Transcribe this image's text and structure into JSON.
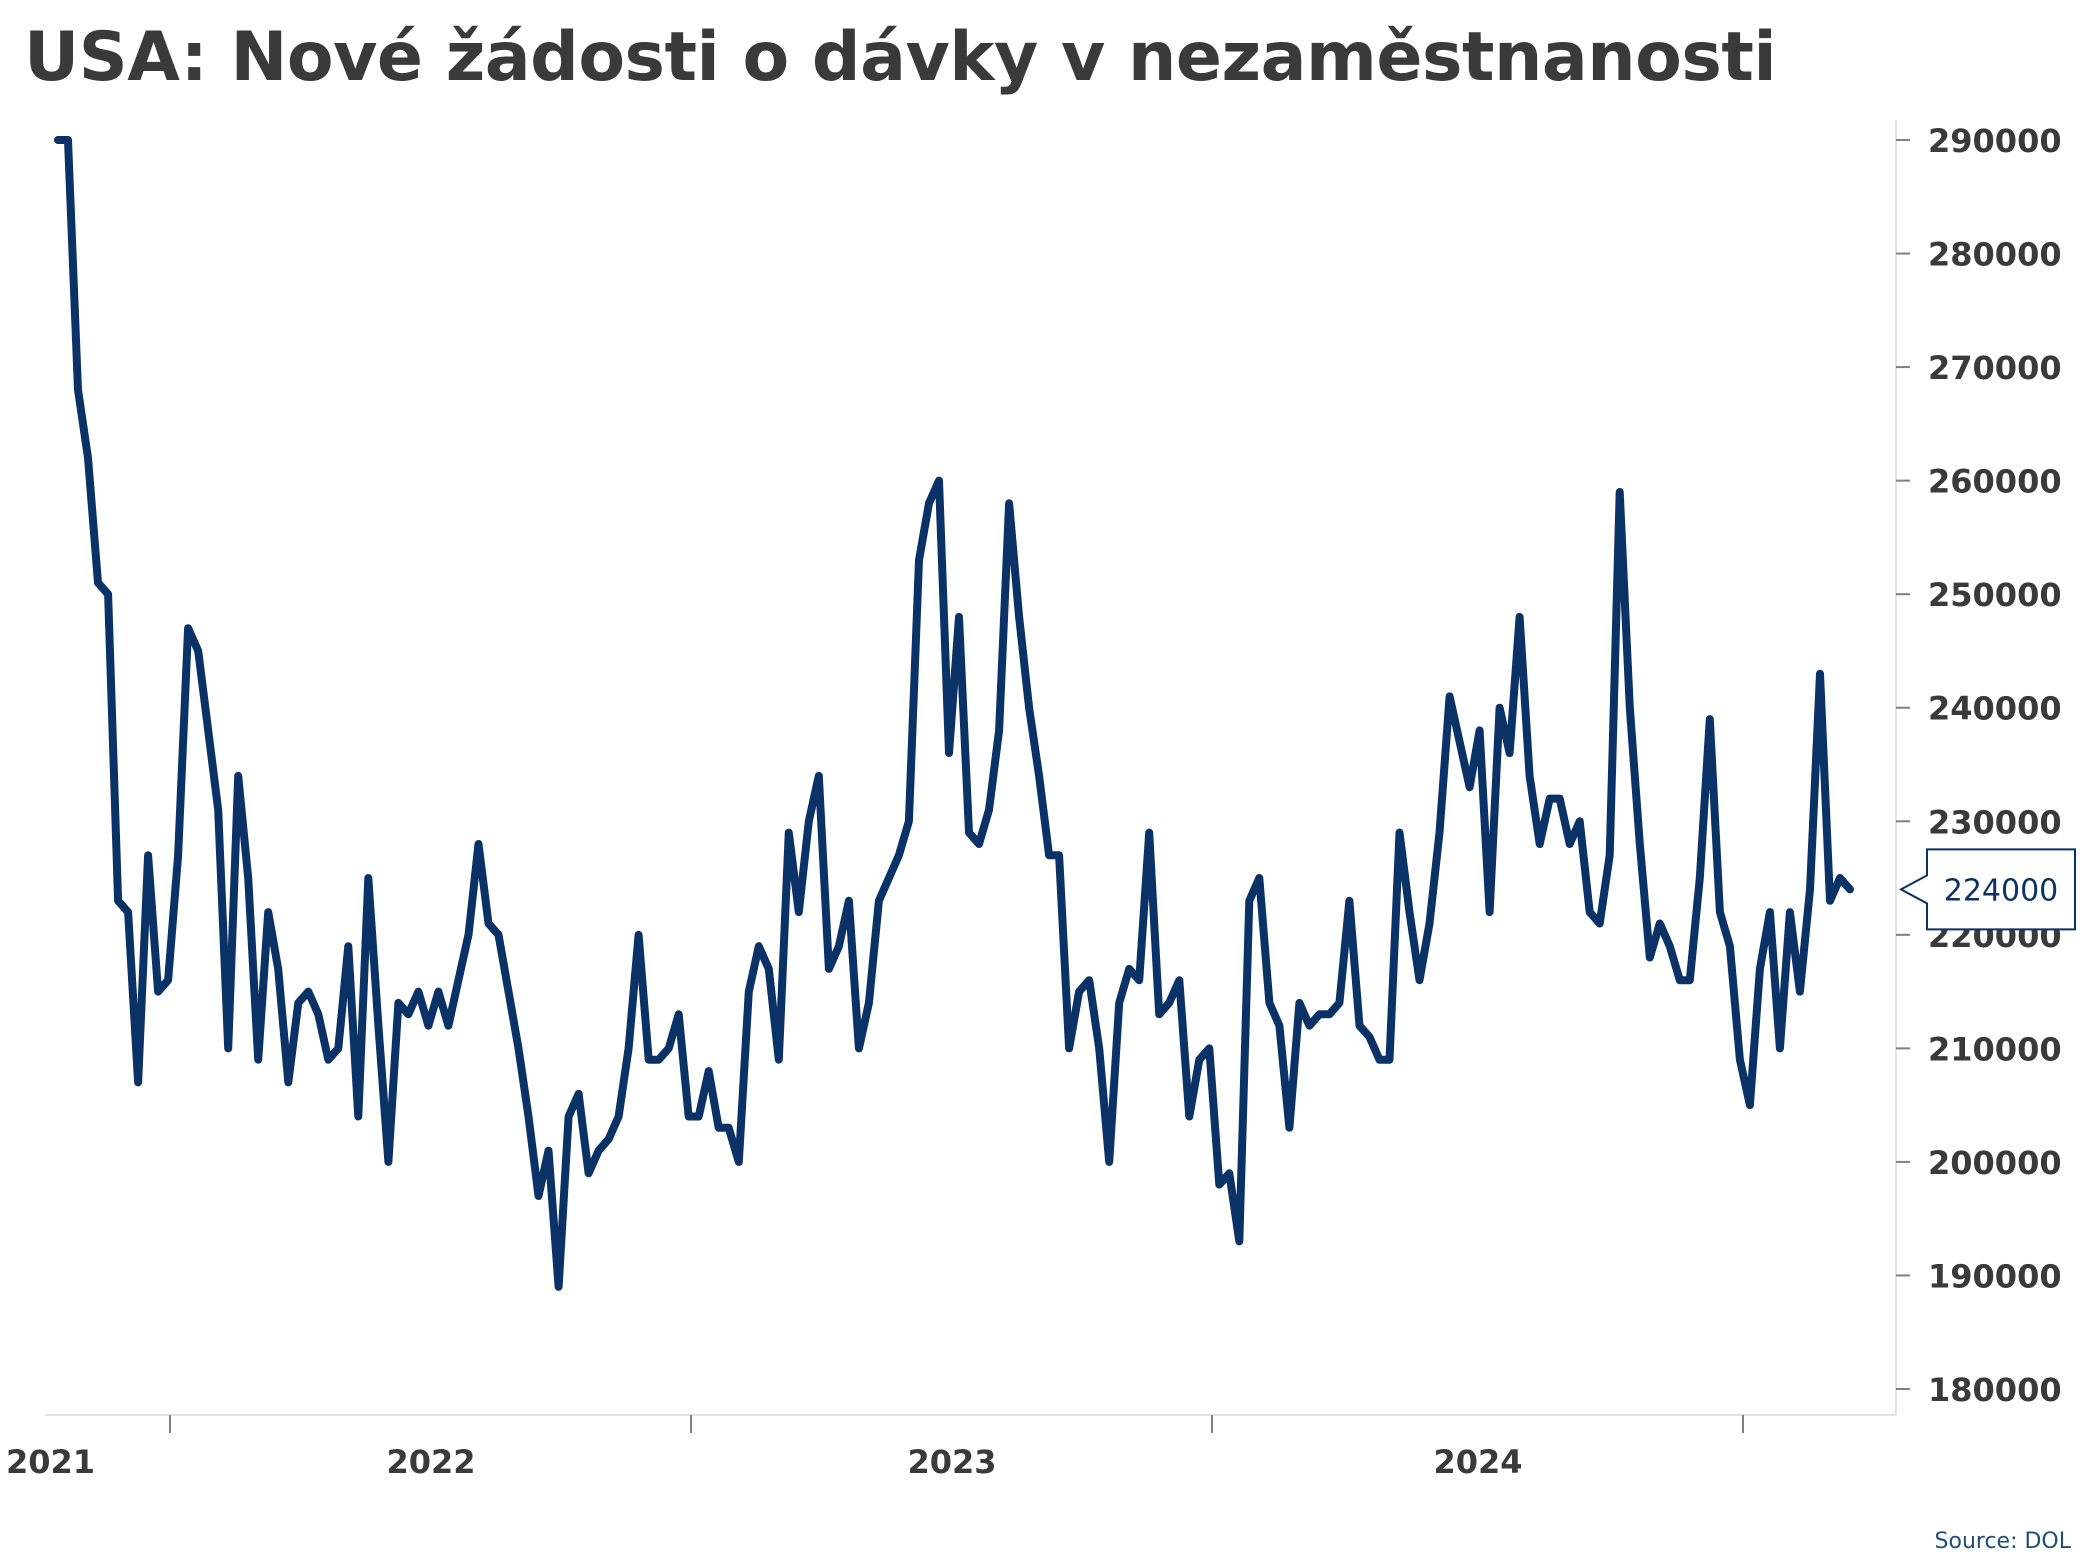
{
  "chart_data": {
    "type": "line",
    "title": "USA: Nové žádosti o dávky v nezaměstnanosti",
    "xlabel": "",
    "ylabel": "",
    "x_ticks": [
      "2021",
      "2022",
      "2023",
      "2024"
    ],
    "y_ticks": [
      180000,
      190000,
      200000,
      210000,
      220000,
      230000,
      240000,
      250000,
      260000,
      270000,
      280000,
      290000
    ],
    "ylim": [
      177000,
      292000
    ],
    "y_axis_position": "right",
    "grid": false,
    "line_color": "#0b3266",
    "last_value_label": "224000",
    "series": [
      {
        "values": [
          290000,
          290000,
          268000,
          262000,
          251000,
          250000,
          223000,
          222000,
          207000,
          227000,
          215000,
          216000,
          227000,
          247000,
          245000,
          238000,
          231000,
          210000,
          234000,
          225000,
          209000,
          222000,
          217000,
          207000,
          214000,
          215000,
          213000,
          209000,
          210000,
          219000,
          204000,
          225000,
          212000,
          200000,
          214000,
          213000,
          215000,
          212000,
          215000,
          212000,
          216000,
          220000,
          228000,
          221000,
          220000,
          215000,
          210000,
          204000,
          197000,
          201000,
          189000,
          204000,
          206000,
          199000,
          201000,
          202000,
          204000,
          210000,
          220000,
          209000,
          209000,
          210000,
          213000,
          204000,
          204000,
          208000,
          203000,
          203000,
          200000,
          215000,
          219000,
          217000,
          209000,
          229000,
          222000,
          230000,
          234000,
          217000,
          219000,
          223000,
          210000,
          214000,
          223000,
          225000,
          227000,
          230000,
          253000,
          258000,
          260000,
          236000,
          248000,
          229000,
          228000,
          231000,
          238000,
          258000,
          248000,
          240000,
          234000,
          227000,
          227000,
          210000,
          215000,
          216000,
          210000,
          200000,
          214000,
          217000,
          216000,
          229000,
          213000,
          214000,
          216000,
          204000,
          209000,
          210000,
          198000,
          199000,
          193000,
          223000,
          225000,
          214000,
          212000,
          203000,
          214000,
          212000,
          213000,
          213000,
          214000,
          223000,
          212000,
          211000,
          209000,
          209000,
          229000,
          222000,
          216000,
          221000,
          229000,
          241000,
          237000,
          233000,
          238000,
          222000,
          240000,
          236000,
          248000,
          234000,
          228000,
          232000,
          232000,
          228000,
          230000,
          222000,
          221000,
          227000,
          259000,
          240000,
          228000,
          218000,
          221000,
          219000,
          216000,
          216000,
          225000,
          239000,
          222000,
          219000,
          209000,
          205000,
          217000,
          222000,
          210000,
          222000,
          215000,
          224000,
          243000,
          223000,
          225000,
          224000
        ]
      }
    ]
  },
  "source": "Source: DOL"
}
